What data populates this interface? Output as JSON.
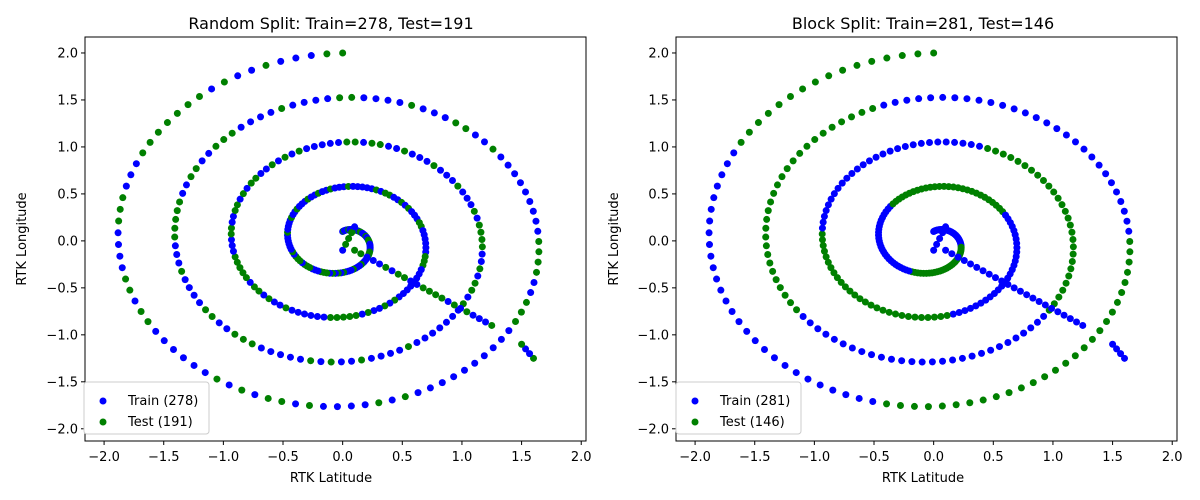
{
  "chart_data": [
    {
      "type": "scatter",
      "title": "Random Split: Train=278, Test=191",
      "xlabel": "RTK Latitude",
      "ylabel": "RTK Longitude",
      "xlim": [
        -2.16,
        2.04
      ],
      "ylim": [
        -2.13,
        2.17
      ],
      "xticks": [
        -2.0,
        -1.5,
        -1.0,
        -0.5,
        0.0,
        0.5,
        1.0,
        1.5,
        2.0
      ],
      "yticks": [
        -2.0,
        -1.5,
        -1.0,
        -0.5,
        0.0,
        0.5,
        1.0,
        1.5,
        2.0
      ],
      "split": "random",
      "train_count": 278,
      "test_count": 191,
      "legend": {
        "location": "lower-left",
        "entries": [
          "Train (278)",
          "Test (191)"
        ]
      },
      "grid": false,
      "series": [
        {
          "name": "Train (278)",
          "color": "#0000ff"
        },
        {
          "name": "Test (191)",
          "color": "#008000"
        }
      ],
      "spiral": {
        "r_start": 0.1,
        "r_end": 2.0,
        "turns": 4,
        "angle_start_deg": 90,
        "direction": "clockwise"
      },
      "connector": [
        [
          1.25,
          -0.9
        ],
        [
          0.1,
          -0.1
        ]
      ],
      "connector2": [
        [
          1.6,
          -1.25
        ],
        [
          1.5,
          -1.1
        ]
      ],
      "connector_extra": [
        [
          0.0,
          -0.1
        ],
        [
          0.1,
          0.15
        ]
      ]
    },
    {
      "type": "scatter",
      "title": "Block Split: Train=281, Test=146",
      "xlabel": "RTK Latitude",
      "ylabel": "RTK Longitude",
      "xlim": [
        -2.16,
        2.04
      ],
      "ylim": [
        -2.13,
        2.17
      ],
      "xticks": [
        -2.0,
        -1.5,
        -1.0,
        -0.5,
        0.0,
        0.5,
        1.0,
        1.5,
        2.0
      ],
      "yticks": [
        -2.0,
        -1.5,
        -1.0,
        -0.5,
        0.0,
        0.5,
        1.0,
        1.5,
        2.0
      ],
      "split": "block",
      "train_count": 281,
      "test_count": 146,
      "legend": {
        "location": "lower-left",
        "entries": [
          "Train (281)",
          "Test (146)"
        ]
      },
      "grid": false,
      "series": [
        {
          "name": "Train (281)",
          "color": "#0000ff"
        },
        {
          "name": "Test (146)",
          "color": "#008000"
        }
      ],
      "spiral": {
        "r_start": 0.1,
        "r_end": 2.0,
        "turns": 4,
        "angle_start_deg": 90,
        "direction": "clockwise"
      },
      "connector": [
        [
          1.25,
          -0.9
        ],
        [
          0.1,
          -0.1
        ]
      ],
      "connector2": [
        [
          1.6,
          -1.25
        ],
        [
          1.5,
          -1.1
        ]
      ],
      "connector_extra": [
        [
          0.0,
          -0.1
        ],
        [
          0.1,
          0.15
        ]
      ]
    }
  ]
}
